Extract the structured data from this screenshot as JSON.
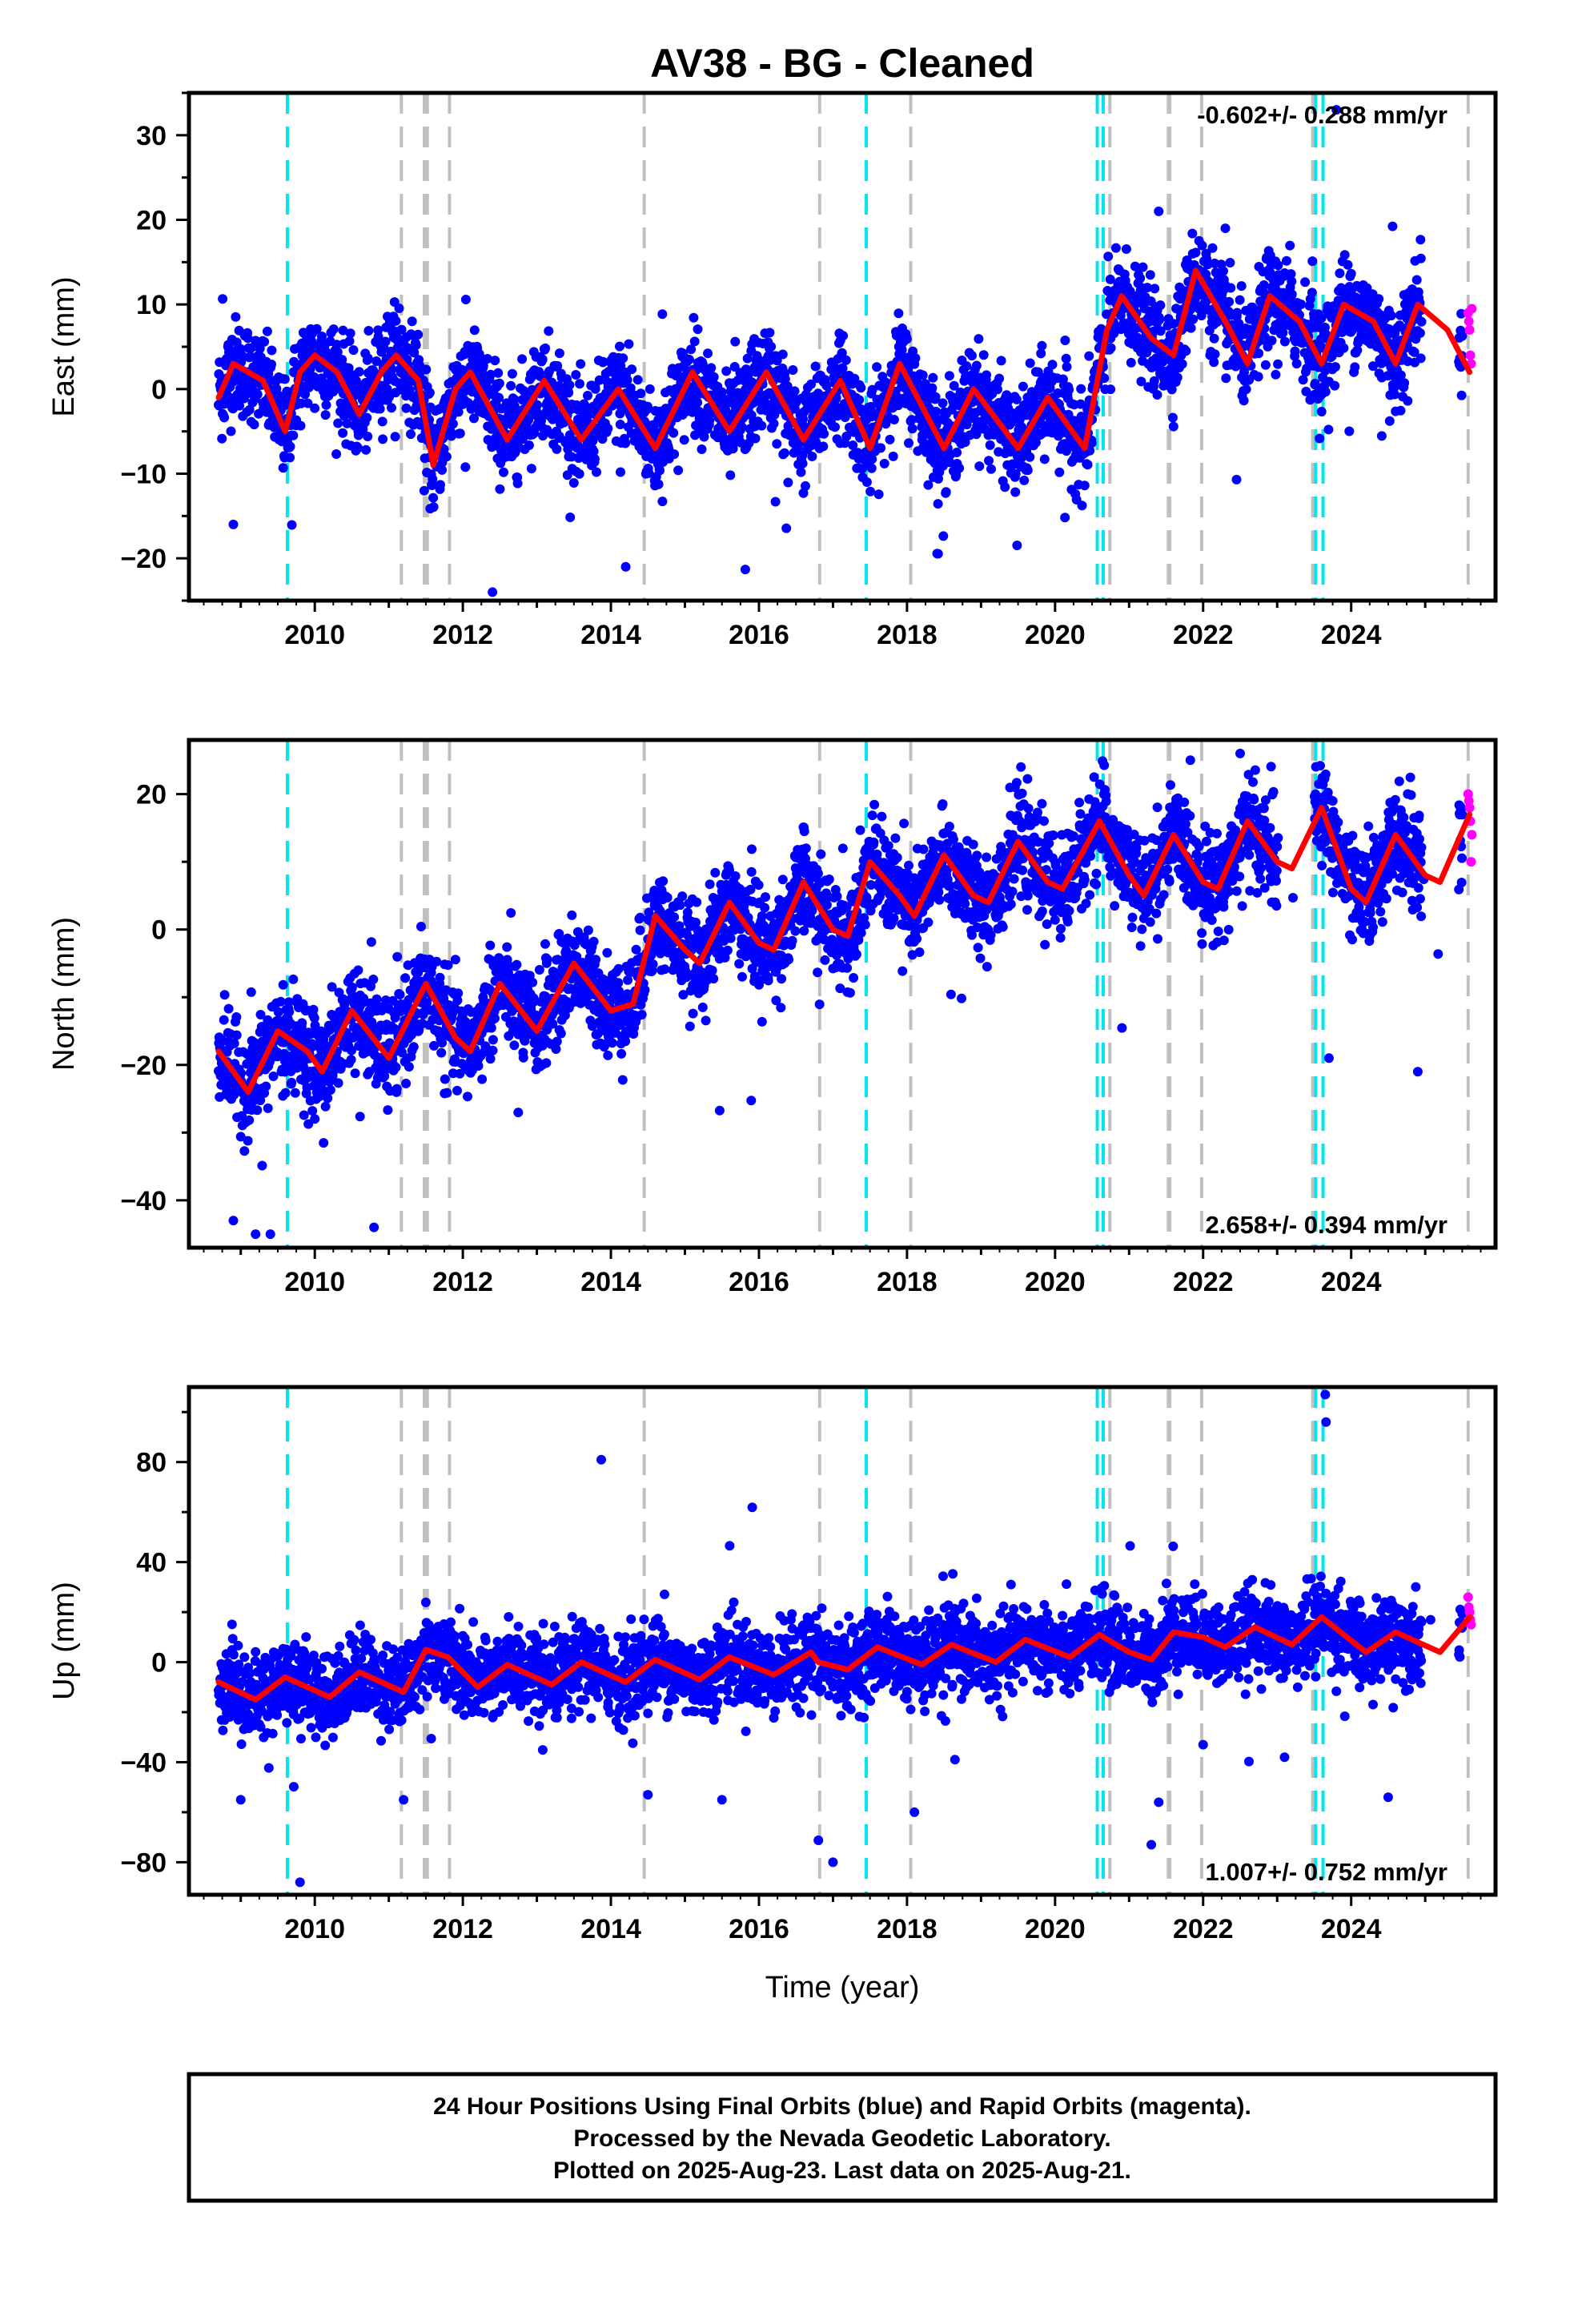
{
  "colors": {
    "final_orbits": "#0000ff",
    "rapid_orbits": "#ff00ff",
    "model_fit": "#ff0000",
    "equipment_change": "#00e5ee",
    "earthquake": "#c0c0c0"
  },
  "footer": {
    "line1": "24 Hour Positions Using Final Orbits (blue) and Rapid Orbits (magenta).",
    "line2": "Processed by the Nevada Geodetic Laboratory.",
    "line3": "Plotted on 2025-Aug-23. Last data on 2025-Aug-21."
  },
  "chart_data": [
    {
      "type": "scatter",
      "title": "AV38  - BG - Cleaned",
      "ylabel": "East (mm)",
      "xlabel": "",
      "xlim": [
        2008.3,
        2025.95
      ],
      "ylim": [
        -25,
        35
      ],
      "x_ticks": [
        2010,
        2012,
        2014,
        2016,
        2018,
        2020,
        2022,
        2024
      ],
      "y_ticks": [
        -20,
        -10,
        0,
        10,
        20,
        30
      ],
      "rate_label": "-0.602+/- 0.288 mm/yr",
      "rate_position": "top-right",
      "trend": -0.602,
      "offsets": [
        {
          "year": 2020.6,
          "size": 15
        }
      ],
      "seasonal_amplitude": 5.0,
      "noise": 2.8,
      "series_fit": [
        {
          "x": 2008.7,
          "y": -1
        },
        {
          "x": 2008.9,
          "y": 3
        },
        {
          "x": 2009.3,
          "y": 1
        },
        {
          "x": 2009.6,
          "y": -5
        },
        {
          "x": 2009.8,
          "y": 2
        },
        {
          "x": 2010.0,
          "y": 4
        },
        {
          "x": 2010.3,
          "y": 2
        },
        {
          "x": 2010.6,
          "y": -3
        },
        {
          "x": 2010.9,
          "y": 2
        },
        {
          "x": 2011.1,
          "y": 4
        },
        {
          "x": 2011.4,
          "y": 1
        },
        {
          "x": 2011.6,
          "y": -9
        },
        {
          "x": 2011.9,
          "y": 0
        },
        {
          "x": 2012.1,
          "y": 2
        },
        {
          "x": 2012.6,
          "y": -6
        },
        {
          "x": 2013.1,
          "y": 1
        },
        {
          "x": 2013.6,
          "y": -6
        },
        {
          "x": 2014.1,
          "y": 0
        },
        {
          "x": 2014.6,
          "y": -7
        },
        {
          "x": 2015.1,
          "y": 2
        },
        {
          "x": 2015.6,
          "y": -5
        },
        {
          "x": 2016.1,
          "y": 2
        },
        {
          "x": 2016.6,
          "y": -6
        },
        {
          "x": 2017.1,
          "y": 1
        },
        {
          "x": 2017.5,
          "y": -7
        },
        {
          "x": 2017.9,
          "y": 3
        },
        {
          "x": 2018.5,
          "y": -7
        },
        {
          "x": 2018.9,
          "y": 0
        },
        {
          "x": 2019.5,
          "y": -7
        },
        {
          "x": 2019.9,
          "y": -1
        },
        {
          "x": 2020.4,
          "y": -7
        },
        {
          "x": 2020.7,
          "y": 7
        },
        {
          "x": 2020.9,
          "y": 11
        },
        {
          "x": 2021.3,
          "y": 6
        },
        {
          "x": 2021.6,
          "y": 4
        },
        {
          "x": 2021.9,
          "y": 14
        },
        {
          "x": 2022.3,
          "y": 8
        },
        {
          "x": 2022.6,
          "y": 3
        },
        {
          "x": 2022.9,
          "y": 11
        },
        {
          "x": 2023.3,
          "y": 8
        },
        {
          "x": 2023.6,
          "y": 3
        },
        {
          "x": 2023.9,
          "y": 10
        },
        {
          "x": 2024.3,
          "y": 8
        },
        {
          "x": 2024.6,
          "y": 3
        },
        {
          "x": 2024.9,
          "y": 10
        },
        {
          "x": 2025.3,
          "y": 7
        },
        {
          "x": 2025.6,
          "y": 2
        }
      ],
      "rapid_points": [
        {
          "x": 2025.58,
          "y": 9
        },
        {
          "x": 2025.59,
          "y": 8
        },
        {
          "x": 2025.6,
          "y": 7
        },
        {
          "x": 2025.61,
          "y": 4
        },
        {
          "x": 2025.62,
          "y": 3
        },
        {
          "x": 2025.63,
          "y": 9.5
        }
      ],
      "outliers": [
        {
          "x": 2014.2,
          "y": -21
        },
        {
          "x": 2012.4,
          "y": -24
        },
        {
          "x": 2008.9,
          "y": -16
        },
        {
          "x": 2021.4,
          "y": 21
        },
        {
          "x": 2022.3,
          "y": 19
        },
        {
          "x": 2023.8,
          "y": 33
        }
      ]
    },
    {
      "type": "scatter",
      "title": "",
      "ylabel": "North (mm)",
      "xlabel": "",
      "xlim": [
        2008.3,
        2025.95
      ],
      "ylim": [
        -47,
        28
      ],
      "x_ticks": [
        2010,
        2012,
        2014,
        2016,
        2018,
        2020,
        2022,
        2024
      ],
      "y_ticks": [
        -40,
        -20,
        0,
        20
      ],
      "rate_label": "2.658+/- 0.394 mm/yr",
      "rate_position": "bottom-right",
      "trend": 2.658,
      "offsets": [],
      "seasonal_amplitude": 4.5,
      "noise": 3.5,
      "series_fit": [
        {
          "x": 2008.7,
          "y": -18
        },
        {
          "x": 2009.1,
          "y": -24
        },
        {
          "x": 2009.5,
          "y": -15
        },
        {
          "x": 2009.9,
          "y": -18
        },
        {
          "x": 2010.1,
          "y": -21
        },
        {
          "x": 2010.5,
          "y": -12
        },
        {
          "x": 2011.0,
          "y": -19
        },
        {
          "x": 2011.5,
          "y": -8
        },
        {
          "x": 2011.9,
          "y": -16
        },
        {
          "x": 2012.1,
          "y": -18
        },
        {
          "x": 2012.5,
          "y": -8
        },
        {
          "x": 2013.0,
          "y": -15
        },
        {
          "x": 2013.5,
          "y": -5
        },
        {
          "x": 2014.0,
          "y": -12
        },
        {
          "x": 2014.3,
          "y": -11
        },
        {
          "x": 2014.6,
          "y": 2
        },
        {
          "x": 2015.0,
          "y": -3
        },
        {
          "x": 2015.2,
          "y": -5
        },
        {
          "x": 2015.6,
          "y": 4
        },
        {
          "x": 2016.0,
          "y": -2
        },
        {
          "x": 2016.2,
          "y": -3
        },
        {
          "x": 2016.6,
          "y": 7
        },
        {
          "x": 2017.0,
          "y": 0
        },
        {
          "x": 2017.2,
          "y": -1
        },
        {
          "x": 2017.5,
          "y": 10
        },
        {
          "x": 2017.9,
          "y": 5
        },
        {
          "x": 2018.1,
          "y": 2
        },
        {
          "x": 2018.5,
          "y": 11
        },
        {
          "x": 2018.9,
          "y": 5
        },
        {
          "x": 2019.1,
          "y": 4
        },
        {
          "x": 2019.5,
          "y": 13
        },
        {
          "x": 2019.9,
          "y": 7
        },
        {
          "x": 2020.1,
          "y": 6
        },
        {
          "x": 2020.6,
          "y": 16
        },
        {
          "x": 2021.0,
          "y": 8
        },
        {
          "x": 2021.2,
          "y": 5
        },
        {
          "x": 2021.6,
          "y": 14
        },
        {
          "x": 2022.0,
          "y": 7
        },
        {
          "x": 2022.2,
          "y": 6
        },
        {
          "x": 2022.6,
          "y": 16
        },
        {
          "x": 2023.0,
          "y": 10
        },
        {
          "x": 2023.2,
          "y": 9
        },
        {
          "x": 2023.6,
          "y": 18
        },
        {
          "x": 2024.0,
          "y": 6
        },
        {
          "x": 2024.2,
          "y": 4
        },
        {
          "x": 2024.6,
          "y": 14
        },
        {
          "x": 2025.0,
          "y": 8
        },
        {
          "x": 2025.2,
          "y": 7
        },
        {
          "x": 2025.6,
          "y": 17
        }
      ],
      "rapid_points": [
        {
          "x": 2025.58,
          "y": 20
        },
        {
          "x": 2025.59,
          "y": 19
        },
        {
          "x": 2025.6,
          "y": 18
        },
        {
          "x": 2025.61,
          "y": 16
        },
        {
          "x": 2025.62,
          "y": 10
        },
        {
          "x": 2025.63,
          "y": 14
        }
      ],
      "outliers": [
        {
          "x": 2009.2,
          "y": -45
        },
        {
          "x": 2009.4,
          "y": -45
        },
        {
          "x": 2008.9,
          "y": -43
        },
        {
          "x": 2010.8,
          "y": -44
        },
        {
          "x": 2022.5,
          "y": 26
        },
        {
          "x": 2024.9,
          "y": -21
        },
        {
          "x": 2023.7,
          "y": -19
        }
      ]
    },
    {
      "type": "scatter",
      "title": "",
      "ylabel": "Up (mm)",
      "xlabel": "Time (year)",
      "xlim": [
        2008.3,
        2025.95
      ],
      "ylim": [
        -93,
        110
      ],
      "x_ticks": [
        2010,
        2012,
        2014,
        2016,
        2018,
        2020,
        2022,
        2024
      ],
      "y_ticks": [
        -80,
        -40,
        0,
        40,
        80
      ],
      "rate_label": "1.007+/- 0.752 mm/yr",
      "rate_position": "bottom-right",
      "trend": 1.007,
      "offsets": [],
      "seasonal_amplitude": 6.0,
      "noise": 8.0,
      "series_fit": [
        {
          "x": 2008.7,
          "y": -8
        },
        {
          "x": 2009.2,
          "y": -15
        },
        {
          "x": 2009.6,
          "y": -6
        },
        {
          "x": 2010.2,
          "y": -14
        },
        {
          "x": 2010.6,
          "y": -4
        },
        {
          "x": 2011.2,
          "y": -12
        },
        {
          "x": 2011.5,
          "y": 5
        },
        {
          "x": 2011.8,
          "y": 2
        },
        {
          "x": 2012.2,
          "y": -10
        },
        {
          "x": 2012.6,
          "y": -1
        },
        {
          "x": 2013.2,
          "y": -9
        },
        {
          "x": 2013.6,
          "y": 0
        },
        {
          "x": 2014.2,
          "y": -8
        },
        {
          "x": 2014.6,
          "y": 1
        },
        {
          "x": 2015.2,
          "y": -7
        },
        {
          "x": 2015.6,
          "y": 2
        },
        {
          "x": 2016.2,
          "y": -5
        },
        {
          "x": 2016.7,
          "y": 4
        },
        {
          "x": 2016.8,
          "y": 0
        },
        {
          "x": 2017.2,
          "y": -3
        },
        {
          "x": 2017.6,
          "y": 6
        },
        {
          "x": 2018.2,
          "y": -1
        },
        {
          "x": 2018.6,
          "y": 7
        },
        {
          "x": 2019.2,
          "y": 0
        },
        {
          "x": 2019.6,
          "y": 9
        },
        {
          "x": 2020.2,
          "y": 2
        },
        {
          "x": 2020.6,
          "y": 11
        },
        {
          "x": 2021.0,
          "y": 4
        },
        {
          "x": 2021.3,
          "y": 1
        },
        {
          "x": 2021.6,
          "y": 12
        },
        {
          "x": 2022.0,
          "y": 10
        },
        {
          "x": 2022.3,
          "y": 6
        },
        {
          "x": 2022.7,
          "y": 14
        },
        {
          "x": 2023.2,
          "y": 7
        },
        {
          "x": 2023.6,
          "y": 18
        },
        {
          "x": 2024.2,
          "y": 4
        },
        {
          "x": 2024.6,
          "y": 12
        },
        {
          "x": 2025.2,
          "y": 4
        },
        {
          "x": 2025.6,
          "y": 18
        }
      ],
      "rapid_points": [
        {
          "x": 2025.58,
          "y": 26
        },
        {
          "x": 2025.59,
          "y": 22
        },
        {
          "x": 2025.6,
          "y": 20
        },
        {
          "x": 2025.61,
          "y": 17
        },
        {
          "x": 2025.62,
          "y": 15
        }
      ],
      "outliers": [
        {
          "x": 2023.65,
          "y": 107
        },
        {
          "x": 2023.66,
          "y": 96
        },
        {
          "x": 2017.0,
          "y": -80
        },
        {
          "x": 2009.8,
          "y": -88
        },
        {
          "x": 2021.4,
          "y": -56
        },
        {
          "x": 2021.3,
          "y": -73
        },
        {
          "x": 2011.2,
          "y": -55
        },
        {
          "x": 2009.0,
          "y": -55
        },
        {
          "x": 2015.5,
          "y": -55
        },
        {
          "x": 2014.5,
          "y": -53
        },
        {
          "x": 2018.1,
          "y": -60
        },
        {
          "x": 2024.5,
          "y": -54
        },
        {
          "x": 2022.0,
          "y": -33
        },
        {
          "x": 2023.1,
          "y": -38
        }
      ]
    }
  ],
  "event_lines": {
    "equipment_change": [
      2009.63,
      2017.45,
      2020.57,
      2020.65,
      2023.52,
      2023.62
    ],
    "earthquake": [
      2011.17,
      2011.48,
      2011.52,
      2011.82,
      2014.45,
      2016.82,
      2018.05,
      2020.74,
      2021.53,
      2021.55,
      2021.98,
      2023.48,
      2025.58
    ]
  }
}
